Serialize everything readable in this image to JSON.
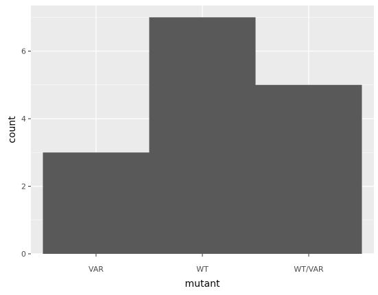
{
  "chart_data": {
    "type": "bar",
    "title": "",
    "xlabel": "mutant",
    "ylabel": "count",
    "categories": [
      "VAR",
      "WT",
      "WT/VAR"
    ],
    "values": [
      3,
      7,
      5
    ],
    "ylim": [
      0,
      7.35
    ],
    "yticks": [
      0,
      2,
      4,
      6
    ],
    "grid": true,
    "legend": "none",
    "colors": {
      "bar": "#595959",
      "panel": "#ebebeb",
      "grid_major": "#ffffff",
      "tick_text": "#4d4d4d",
      "axis_title": "#000000"
    }
  }
}
